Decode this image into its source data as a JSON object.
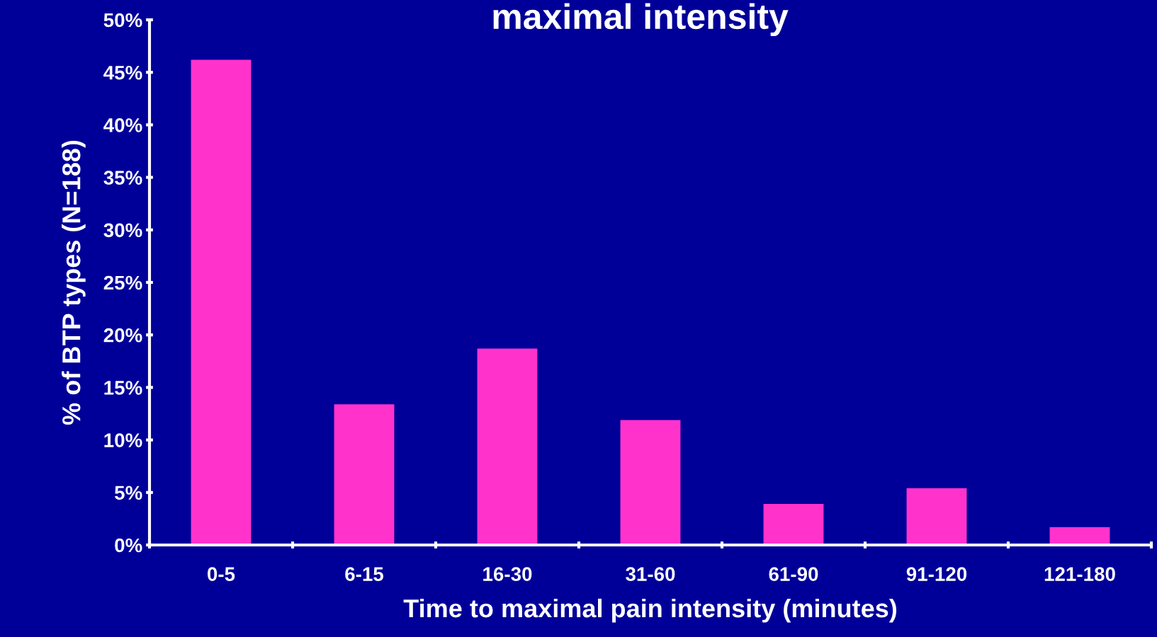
{
  "chart_data": {
    "type": "bar",
    "title": "maximal intensity",
    "xlabel": "Time to maximal pain intensity (minutes)",
    "ylabel": "% of BTP types (N=188)",
    "categories": [
      "0-5",
      "6-15",
      "16-30",
      "31-60",
      "61-90",
      "91-120",
      "121-180"
    ],
    "values": [
      46.2,
      13.4,
      18.7,
      11.9,
      3.9,
      5.4,
      1.7
    ],
    "color": "#ff33cc",
    "ylim": [
      0,
      50
    ],
    "yticks": [
      {
        "value": 0,
        "label": "0%"
      },
      {
        "value": 5,
        "label": "5%"
      },
      {
        "value": 10,
        "label": "10%"
      },
      {
        "value": 15,
        "label": "15%"
      },
      {
        "value": 20,
        "label": "20%"
      },
      {
        "value": 25,
        "label": "25%"
      },
      {
        "value": 30,
        "label": "30%"
      },
      {
        "value": 35,
        "label": "35%"
      },
      {
        "value": 40,
        "label": "40%"
      },
      {
        "value": 45,
        "label": "45%"
      },
      {
        "value": 50,
        "label": "50%"
      }
    ],
    "grid": false
  }
}
